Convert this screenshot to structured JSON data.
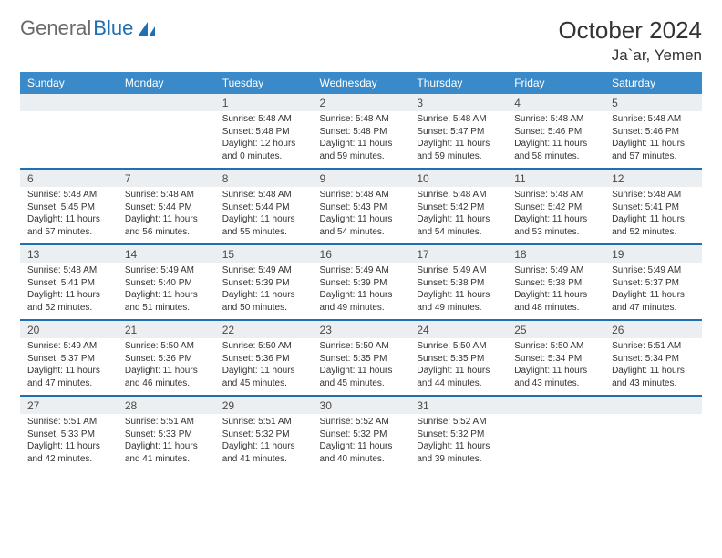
{
  "logo": {
    "part1": "General",
    "part2": "Blue"
  },
  "title": "October 2024",
  "location": "Ja`ar, Yemen",
  "colors": {
    "header_bg": "#3a8ac9",
    "header_border": "#1f6fb2",
    "numrow_bg": "#eceff1",
    "text": "#333333",
    "logo_gray": "#6a6a6a",
    "logo_blue": "#1f6fb2"
  },
  "day_names": [
    "Sunday",
    "Monday",
    "Tuesday",
    "Wednesday",
    "Thursday",
    "Friday",
    "Saturday"
  ],
  "weeks": [
    {
      "nums": [
        "",
        "",
        "1",
        "2",
        "3",
        "4",
        "5"
      ],
      "cells": [
        {
          "sunrise": "",
          "sunset": "",
          "daylight": ""
        },
        {
          "sunrise": "",
          "sunset": "",
          "daylight": ""
        },
        {
          "sunrise": "Sunrise: 5:48 AM",
          "sunset": "Sunset: 5:48 PM",
          "daylight": "Daylight: 12 hours and 0 minutes."
        },
        {
          "sunrise": "Sunrise: 5:48 AM",
          "sunset": "Sunset: 5:48 PM",
          "daylight": "Daylight: 11 hours and 59 minutes."
        },
        {
          "sunrise": "Sunrise: 5:48 AM",
          "sunset": "Sunset: 5:47 PM",
          "daylight": "Daylight: 11 hours and 59 minutes."
        },
        {
          "sunrise": "Sunrise: 5:48 AM",
          "sunset": "Sunset: 5:46 PM",
          "daylight": "Daylight: 11 hours and 58 minutes."
        },
        {
          "sunrise": "Sunrise: 5:48 AM",
          "sunset": "Sunset: 5:46 PM",
          "daylight": "Daylight: 11 hours and 57 minutes."
        }
      ]
    },
    {
      "nums": [
        "6",
        "7",
        "8",
        "9",
        "10",
        "11",
        "12"
      ],
      "cells": [
        {
          "sunrise": "Sunrise: 5:48 AM",
          "sunset": "Sunset: 5:45 PM",
          "daylight": "Daylight: 11 hours and 57 minutes."
        },
        {
          "sunrise": "Sunrise: 5:48 AM",
          "sunset": "Sunset: 5:44 PM",
          "daylight": "Daylight: 11 hours and 56 minutes."
        },
        {
          "sunrise": "Sunrise: 5:48 AM",
          "sunset": "Sunset: 5:44 PM",
          "daylight": "Daylight: 11 hours and 55 minutes."
        },
        {
          "sunrise": "Sunrise: 5:48 AM",
          "sunset": "Sunset: 5:43 PM",
          "daylight": "Daylight: 11 hours and 54 minutes."
        },
        {
          "sunrise": "Sunrise: 5:48 AM",
          "sunset": "Sunset: 5:42 PM",
          "daylight": "Daylight: 11 hours and 54 minutes."
        },
        {
          "sunrise": "Sunrise: 5:48 AM",
          "sunset": "Sunset: 5:42 PM",
          "daylight": "Daylight: 11 hours and 53 minutes."
        },
        {
          "sunrise": "Sunrise: 5:48 AM",
          "sunset": "Sunset: 5:41 PM",
          "daylight": "Daylight: 11 hours and 52 minutes."
        }
      ]
    },
    {
      "nums": [
        "13",
        "14",
        "15",
        "16",
        "17",
        "18",
        "19"
      ],
      "cells": [
        {
          "sunrise": "Sunrise: 5:48 AM",
          "sunset": "Sunset: 5:41 PM",
          "daylight": "Daylight: 11 hours and 52 minutes."
        },
        {
          "sunrise": "Sunrise: 5:49 AM",
          "sunset": "Sunset: 5:40 PM",
          "daylight": "Daylight: 11 hours and 51 minutes."
        },
        {
          "sunrise": "Sunrise: 5:49 AM",
          "sunset": "Sunset: 5:39 PM",
          "daylight": "Daylight: 11 hours and 50 minutes."
        },
        {
          "sunrise": "Sunrise: 5:49 AM",
          "sunset": "Sunset: 5:39 PM",
          "daylight": "Daylight: 11 hours and 49 minutes."
        },
        {
          "sunrise": "Sunrise: 5:49 AM",
          "sunset": "Sunset: 5:38 PM",
          "daylight": "Daylight: 11 hours and 49 minutes."
        },
        {
          "sunrise": "Sunrise: 5:49 AM",
          "sunset": "Sunset: 5:38 PM",
          "daylight": "Daylight: 11 hours and 48 minutes."
        },
        {
          "sunrise": "Sunrise: 5:49 AM",
          "sunset": "Sunset: 5:37 PM",
          "daylight": "Daylight: 11 hours and 47 minutes."
        }
      ]
    },
    {
      "nums": [
        "20",
        "21",
        "22",
        "23",
        "24",
        "25",
        "26"
      ],
      "cells": [
        {
          "sunrise": "Sunrise: 5:49 AM",
          "sunset": "Sunset: 5:37 PM",
          "daylight": "Daylight: 11 hours and 47 minutes."
        },
        {
          "sunrise": "Sunrise: 5:50 AM",
          "sunset": "Sunset: 5:36 PM",
          "daylight": "Daylight: 11 hours and 46 minutes."
        },
        {
          "sunrise": "Sunrise: 5:50 AM",
          "sunset": "Sunset: 5:36 PM",
          "daylight": "Daylight: 11 hours and 45 minutes."
        },
        {
          "sunrise": "Sunrise: 5:50 AM",
          "sunset": "Sunset: 5:35 PM",
          "daylight": "Daylight: 11 hours and 45 minutes."
        },
        {
          "sunrise": "Sunrise: 5:50 AM",
          "sunset": "Sunset: 5:35 PM",
          "daylight": "Daylight: 11 hours and 44 minutes."
        },
        {
          "sunrise": "Sunrise: 5:50 AM",
          "sunset": "Sunset: 5:34 PM",
          "daylight": "Daylight: 11 hours and 43 minutes."
        },
        {
          "sunrise": "Sunrise: 5:51 AM",
          "sunset": "Sunset: 5:34 PM",
          "daylight": "Daylight: 11 hours and 43 minutes."
        }
      ]
    },
    {
      "nums": [
        "27",
        "28",
        "29",
        "30",
        "31",
        "",
        ""
      ],
      "cells": [
        {
          "sunrise": "Sunrise: 5:51 AM",
          "sunset": "Sunset: 5:33 PM",
          "daylight": "Daylight: 11 hours and 42 minutes."
        },
        {
          "sunrise": "Sunrise: 5:51 AM",
          "sunset": "Sunset: 5:33 PM",
          "daylight": "Daylight: 11 hours and 41 minutes."
        },
        {
          "sunrise": "Sunrise: 5:51 AM",
          "sunset": "Sunset: 5:32 PM",
          "daylight": "Daylight: 11 hours and 41 minutes."
        },
        {
          "sunrise": "Sunrise: 5:52 AM",
          "sunset": "Sunset: 5:32 PM",
          "daylight": "Daylight: 11 hours and 40 minutes."
        },
        {
          "sunrise": "Sunrise: 5:52 AM",
          "sunset": "Sunset: 5:32 PM",
          "daylight": "Daylight: 11 hours and 39 minutes."
        },
        {
          "sunrise": "",
          "sunset": "",
          "daylight": ""
        },
        {
          "sunrise": "",
          "sunset": "",
          "daylight": ""
        }
      ]
    }
  ]
}
